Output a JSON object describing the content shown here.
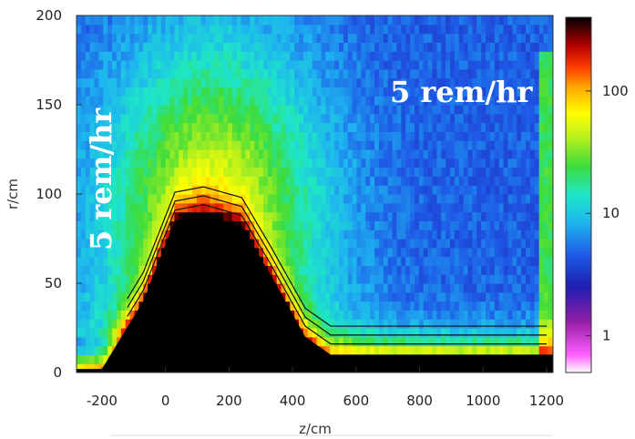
{
  "chart_data": {
    "type": "heatmap",
    "title": "",
    "xlabel": "z/cm",
    "ylabel": "r/cm",
    "xlim": [
      -280,
      1220
    ],
    "ylim": [
      0,
      200
    ],
    "x_ticks": [
      "-200",
      "0",
      "200",
      "400",
      "600",
      "800",
      "1000",
      "1200"
    ],
    "y_ticks": [
      "0",
      "50",
      "100",
      "150",
      "200"
    ],
    "colorbar": {
      "scale": "log",
      "ticks": [
        "1",
        "10",
        "100"
      ],
      "colors": [
        "#ffffff",
        "#ff60ff",
        "#9a1ea8",
        "#1e1eb0",
        "#1e5ae6",
        "#1eb4f0",
        "#1ee6c8",
        "#3cdc3c",
        "#b4f01e",
        "#ffff00",
        "#ffaa00",
        "#ff3c00",
        "#b40000",
        "#000000"
      ]
    },
    "contour_label": "5 rem/h",
    "annotations": [
      {
        "text": "5 rem/hr",
        "orientation": "vertical",
        "location": "left"
      },
      {
        "text": "5 rem/hr",
        "orientation": "horizontal",
        "location": "upper-right"
      }
    ],
    "shield_profile": {
      "z": [
        -280,
        -200,
        -70,
        30,
        120,
        240,
        330,
        440,
        520,
        1220
      ],
      "r": [
        2,
        2,
        40,
        85,
        88,
        82,
        55,
        20,
        10,
        10
      ]
    }
  }
}
